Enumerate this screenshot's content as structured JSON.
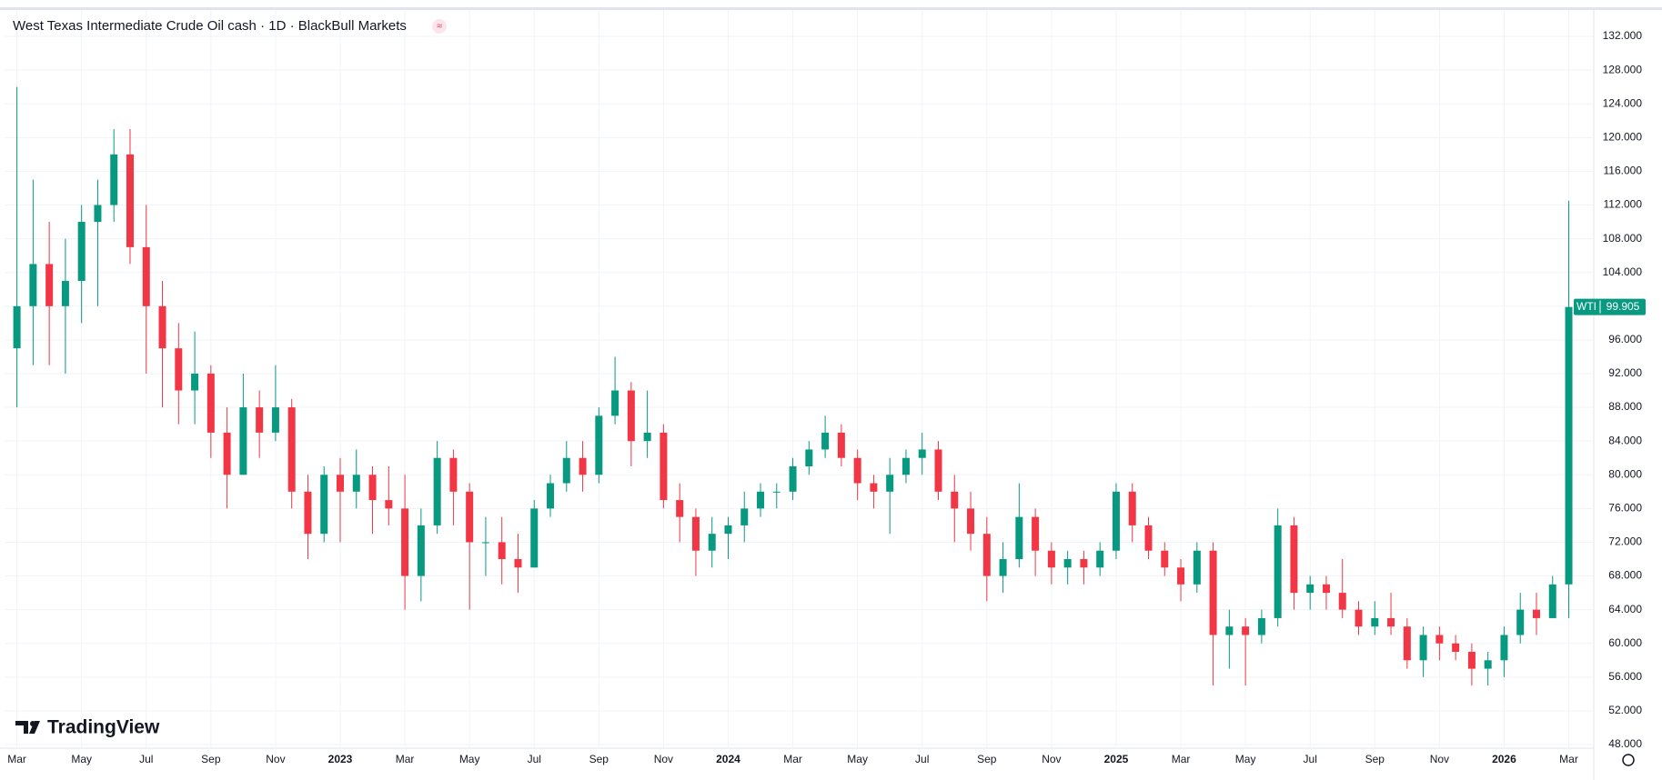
{
  "header": {
    "title": "West Texas Intermediate Crude Oil cash · 1D · BlackBull Markets",
    "logo": "TradingView"
  },
  "chart_data": {
    "type": "candlestick",
    "categories": [
      "Mar",
      null,
      null,
      null,
      "May",
      null,
      null,
      null,
      "Jul",
      null,
      null,
      null,
      "Sep",
      null,
      null,
      null,
      "Nov",
      null,
      null,
      null,
      "2023",
      null,
      null,
      null,
      "Mar",
      null,
      null,
      null,
      "May",
      null,
      null,
      null,
      "Jul",
      null,
      null,
      null,
      "Sep",
      null,
      null,
      null,
      "Nov",
      null,
      null,
      null,
      "2024",
      null,
      null,
      null,
      "Mar",
      null,
      null,
      null,
      "May",
      null,
      null,
      null,
      "Jul",
      null,
      null,
      null,
      "Sep",
      null,
      null,
      null,
      "Nov",
      null,
      null,
      null,
      "2025",
      null,
      null,
      null,
      "Mar",
      null,
      null,
      null,
      "May",
      null,
      null,
      null,
      "Jul",
      null,
      null,
      null,
      "Sep",
      null,
      null,
      null,
      "Nov",
      null,
      null,
      null,
      "2026",
      null,
      null,
      null,
      "Mar"
    ],
    "series": [
      {
        "name": "WTI",
        "up_color": "#089981",
        "down_color": "#f23645",
        "open": [
          95,
          100,
          105,
          100,
          103,
          110,
          112,
          118,
          107,
          100,
          95,
          90,
          92,
          85,
          80,
          88,
          85,
          88,
          78,
          73,
          80,
          78,
          80,
          77,
          76,
          68,
          74,
          82,
          78,
          72,
          72,
          70,
          69,
          76,
          79,
          82,
          80,
          87,
          90,
          84,
          85,
          77,
          75,
          71,
          73,
          74,
          76,
          78,
          78,
          81,
          83,
          85,
          82,
          79,
          78,
          80,
          82,
          83,
          78,
          76,
          73,
          68,
          70,
          75,
          71,
          69,
          70,
          69,
          71,
          78,
          74,
          71,
          69,
          67,
          71,
          61,
          62,
          61,
          63,
          74,
          66,
          67,
          66,
          64,
          62,
          63,
          62,
          58,
          61,
          60,
          59,
          57,
          58,
          61,
          64,
          63,
          67
        ],
        "high": [
          126,
          115,
          110,
          108,
          112,
          115,
          121,
          121,
          112,
          103,
          98,
          97,
          93,
          88,
          92,
          90,
          93,
          89,
          80,
          81,
          82,
          83,
          81,
          81,
          80,
          76,
          84,
          83,
          79,
          75,
          75,
          73,
          77,
          80,
          84,
          84,
          88,
          94,
          91,
          90,
          86,
          79,
          76,
          75,
          75,
          78,
          79,
          79,
          82,
          84,
          87,
          86,
          83,
          80,
          82,
          83,
          85,
          84,
          80,
          78,
          75,
          72,
          79,
          76,
          72,
          71,
          71,
          72,
          79,
          79,
          75,
          72,
          70,
          72,
          72,
          64,
          63,
          64,
          76,
          75,
          68,
          68,
          70,
          65,
          65,
          66,
          63,
          62,
          62,
          61,
          60,
          59,
          62,
          66,
          66,
          68,
          112.5
        ],
        "low": [
          88,
          93,
          93,
          92,
          98,
          100,
          110,
          105,
          92,
          88,
          86,
          86,
          82,
          76,
          80,
          82,
          84,
          76,
          70,
          72,
          72,
          76,
          73,
          74,
          64,
          65,
          73,
          74,
          64,
          68,
          67,
          66,
          69,
          75,
          78,
          78,
          79,
          86,
          81,
          82,
          76,
          72,
          68,
          69,
          70,
          72,
          75,
          76,
          77,
          80,
          82,
          81,
          77,
          76,
          73,
          79,
          80,
          77,
          72,
          71,
          65,
          66,
          69,
          68,
          67,
          67,
          67,
          68,
          70,
          72,
          70,
          68,
          65,
          66,
          55,
          57,
          55,
          60,
          62,
          64,
          64,
          64,
          63,
          61,
          61,
          61,
          57,
          56,
          58,
          58,
          55,
          55,
          56,
          60,
          61,
          63,
          63
        ],
        "close": [
          100,
          105,
          100,
          103,
          110,
          112,
          118,
          107,
          100,
          95,
          90,
          92,
          85,
          80,
          88,
          85,
          88,
          78,
          73,
          80,
          78,
          80,
          77,
          76,
          68,
          74,
          82,
          78,
          72,
          72,
          70,
          69,
          76,
          79,
          82,
          80,
          87,
          90,
          84,
          85,
          77,
          75,
          71,
          73,
          74,
          76,
          78,
          78,
          81,
          83,
          85,
          82,
          79,
          78,
          80,
          82,
          83,
          78,
          76,
          73,
          68,
          70,
          75,
          71,
          69,
          70,
          69,
          71,
          78,
          74,
          71,
          69,
          67,
          71,
          61,
          62,
          61,
          63,
          74,
          66,
          67,
          66,
          64,
          62,
          63,
          62,
          58,
          61,
          60,
          59,
          57,
          58,
          61,
          64,
          63,
          67,
          99.905
        ]
      }
    ],
    "ylim": [
      47.68,
      135.13
    ],
    "yticks": [
      {
        "value": 48,
        "label": "48.000"
      },
      {
        "value": 52,
        "label": "52.000"
      },
      {
        "value": 56,
        "label": "56.000"
      },
      {
        "value": 60,
        "label": "60.000"
      },
      {
        "value": 64,
        "label": "64.000"
      },
      {
        "value": 68,
        "label": "68.000"
      },
      {
        "value": 72,
        "label": "72.000"
      },
      {
        "value": 76,
        "label": "76.000"
      },
      {
        "value": 80,
        "label": "80.000"
      },
      {
        "value": 84,
        "label": "84.000"
      },
      {
        "value": 88,
        "label": "88.000"
      },
      {
        "value": 92,
        "label": "92.000"
      },
      {
        "value": 96,
        "label": "96.000"
      },
      {
        "value": 100,
        "label": "100.000"
      },
      {
        "value": 104,
        "label": "104.000"
      },
      {
        "value": 108,
        "label": "108.000"
      },
      {
        "value": 112,
        "label": "112.000"
      },
      {
        "value": 116,
        "label": "116.000"
      },
      {
        "value": 120,
        "label": "120.000"
      },
      {
        "value": 124,
        "label": "124.000"
      },
      {
        "value": 128,
        "label": "128.000"
      },
      {
        "value": 132,
        "label": "132.000"
      }
    ],
    "grid": true
  }
}
